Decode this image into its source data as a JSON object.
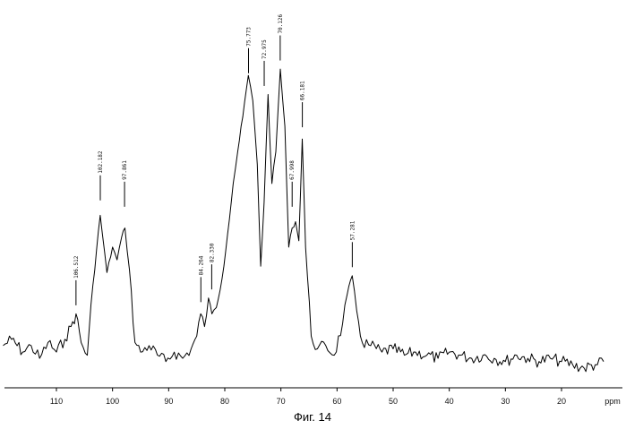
{
  "figure": {
    "caption": "Фиг. 14"
  },
  "chart_data": {
    "type": "line",
    "xlabel": "ppm",
    "ylabel": "",
    "x_reversed": true,
    "xlim": [
      120,
      12
    ],
    "ylim": [
      0,
      100
    ],
    "xticks": [
      110,
      100,
      90,
      80,
      70,
      60,
      50,
      40,
      30,
      20
    ],
    "grid": false,
    "peak_labels": [
      {
        "x": 106.512,
        "label": "106.512",
        "y": 22
      },
      {
        "x": 102.182,
        "label": "102.182",
        "y": 55
      },
      {
        "x": 97.861,
        "label": "97.861",
        "y": 53
      },
      {
        "x": 84.264,
        "label": "84.264",
        "y": 23
      },
      {
        "x": 82.33,
        "label": "82.330",
        "y": 27
      },
      {
        "x": 75.773,
        "label": "75.773",
        "y": 95
      },
      {
        "x": 72.975,
        "label": "72.975",
        "y": 91
      },
      {
        "x": 70.126,
        "label": "70.126",
        "y": 99
      },
      {
        "x": 67.998,
        "label": "67.998",
        "y": 53
      },
      {
        "x": 66.181,
        "label": "66.181",
        "y": 78
      },
      {
        "x": 57.281,
        "label": "57.281",
        "y": 34
      }
    ],
    "series": [
      {
        "x": [
          119.5,
          118,
          116,
          114.5,
          113,
          111.5,
          110,
          108.5,
          107.4,
          106.5,
          105.6,
          104.5,
          103.5,
          102.2,
          101,
          100,
          99.2,
          98.4,
          97.8,
          97,
          96,
          95,
          93.5,
          92,
          90.5,
          89,
          87.5,
          86,
          85,
          84.3,
          83.6,
          82.9,
          82.3,
          81.5,
          80.5,
          79.5,
          78.5,
          77.7,
          76.8,
          75.8,
          75,
          74.2,
          73.6,
          73,
          72.3,
          71.6,
          70.9,
          70.1,
          69.3,
          68.6,
          68,
          67.4,
          66.8,
          66.2,
          65.6,
          64.6,
          63.5,
          62,
          60.5,
          59,
          58.2,
          57.3,
          56.5,
          55.5,
          54,
          52,
          50,
          48,
          46,
          44,
          42,
          40,
          38,
          36,
          34,
          32,
          30,
          28,
          26,
          24,
          22,
          20,
          18,
          16,
          14,
          12.5
        ],
        "y": [
          11,
          13,
          9,
          11,
          7,
          12,
          9,
          13,
          17,
          21,
          12,
          8,
          30,
          52,
          34,
          42,
          38,
          45,
          48,
          35,
          12,
          9,
          11,
          8,
          6,
          9,
          7,
          10,
          14,
          21,
          17,
          26,
          21,
          23,
          32,
          46,
          62,
          72,
          83,
          96,
          88,
          68,
          36,
          56,
          90,
          62,
          72,
          98,
          80,
          42,
          48,
          50,
          44,
          76,
          42,
          14,
          10,
          11,
          8,
          18,
          27,
          33,
          22,
          12,
          11,
          9,
          10,
          8,
          9,
          8,
          7,
          9,
          8,
          7,
          8,
          7,
          6,
          8,
          7,
          6,
          7,
          6,
          5,
          4,
          5,
          6
        ]
      }
    ]
  }
}
